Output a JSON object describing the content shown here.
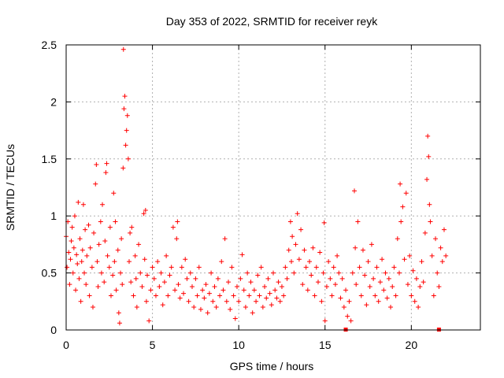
{
  "chart_data": {
    "type": "scatter",
    "title": "Day 353 of 2022, SRMTID for receiver reyk",
    "xlabel": "GPS time / hours",
    "ylabel": "SRMTID / TECUs",
    "xlim": [
      0,
      24
    ],
    "ylim": [
      0,
      2.5
    ],
    "x_ticks": [
      0,
      5,
      10,
      15,
      20
    ],
    "x_tick_labels": [
      "0",
      "5",
      "10",
      "15",
      "20"
    ],
    "y_ticks": [
      0,
      0.5,
      1,
      1.5,
      2,
      2.5
    ],
    "y_tick_labels": [
      "0",
      "0.5",
      "1",
      "1.5",
      "2",
      "2.5"
    ],
    "grid": true,
    "marker": "+",
    "color": "#ff0000",
    "series": [
      {
        "name": "SRMTID",
        "points": [
          [
            0.0,
            0.82
          ],
          [
            0.05,
            0.55
          ],
          [
            0.1,
            0.95
          ],
          [
            0.15,
            0.68
          ],
          [
            0.2,
            0.4
          ],
          [
            0.25,
            0.62
          ],
          [
            0.3,
            0.78
          ],
          [
            0.35,
            0.9
          ],
          [
            0.4,
            0.5
          ],
          [
            0.45,
            0.72
          ],
          [
            0.5,
            1.0
          ],
          [
            0.55,
            0.35
          ],
          [
            0.6,
            0.66
          ],
          [
            0.65,
            0.58
          ],
          [
            0.7,
            1.12
          ],
          [
            0.75,
            0.45
          ],
          [
            0.8,
            0.8
          ],
          [
            0.85,
            0.25
          ],
          [
            0.9,
            0.6
          ],
          [
            0.95,
            0.7
          ],
          [
            1.0,
            1.1
          ],
          [
            1.05,
            0.5
          ],
          [
            1.1,
            0.88
          ],
          [
            1.15,
            0.4
          ],
          [
            1.2,
            0.65
          ],
          [
            1.3,
            0.92
          ],
          [
            1.35,
            0.3
          ],
          [
            1.4,
            0.72
          ],
          [
            1.5,
            0.55
          ],
          [
            1.55,
            0.2
          ],
          [
            1.6,
            0.85
          ],
          [
            1.7,
            1.28
          ],
          [
            1.75,
            1.45
          ],
          [
            1.8,
            0.6
          ],
          [
            1.85,
            0.38
          ],
          [
            1.9,
            0.75
          ],
          [
            2.0,
            0.95
          ],
          [
            2.05,
            0.5
          ],
          [
            2.1,
            1.1
          ],
          [
            2.2,
            0.42
          ],
          [
            2.25,
            0.78
          ],
          [
            2.3,
            1.38
          ],
          [
            2.35,
            1.46
          ],
          [
            2.4,
            0.65
          ],
          [
            2.5,
            0.55
          ],
          [
            2.55,
            0.9
          ],
          [
            2.6,
            0.3
          ],
          [
            2.7,
            0.48
          ],
          [
            2.75,
            1.2
          ],
          [
            2.8,
            0.6
          ],
          [
            2.85,
            0.95
          ],
          [
            2.9,
            0.35
          ],
          [
            3.0,
            0.7
          ],
          [
            3.05,
            0.15
          ],
          [
            3.1,
            0.06
          ],
          [
            3.15,
            0.5
          ],
          [
            3.2,
            0.8
          ],
          [
            3.25,
            0.4
          ],
          [
            3.3,
            1.42
          ],
          [
            3.32,
            2.46
          ],
          [
            3.35,
            1.94
          ],
          [
            3.4,
            2.05
          ],
          [
            3.45,
            1.62
          ],
          [
            3.5,
            1.75
          ],
          [
            3.55,
            1.88
          ],
          [
            3.6,
            1.5
          ],
          [
            3.65,
            0.6
          ],
          [
            3.7,
            0.85
          ],
          [
            3.75,
            0.42
          ],
          [
            3.8,
            0.9
          ],
          [
            3.9,
            0.3
          ],
          [
            4.0,
            0.65
          ],
          [
            4.05,
            0.45
          ],
          [
            4.1,
            0.2
          ],
          [
            4.2,
            0.75
          ],
          [
            4.3,
            0.5
          ],
          [
            4.4,
            0.38
          ],
          [
            4.5,
            1.02
          ],
          [
            4.55,
            0.62
          ],
          [
            4.6,
            1.05
          ],
          [
            4.65,
            0.25
          ],
          [
            4.7,
            0.48
          ],
          [
            4.8,
            0.08
          ],
          [
            4.9,
            0.35
          ],
          [
            5.0,
            0.55
          ],
          [
            5.1,
            0.45
          ],
          [
            5.2,
            0.3
          ],
          [
            5.3,
            0.6
          ],
          [
            5.4,
            0.38
          ],
          [
            5.5,
            0.5
          ],
          [
            5.6,
            0.22
          ],
          [
            5.7,
            0.42
          ],
          [
            5.8,
            0.65
          ],
          [
            5.9,
            0.3
          ],
          [
            6.0,
            0.48
          ],
          [
            6.1,
            0.55
          ],
          [
            6.2,
            0.9
          ],
          [
            6.3,
            0.35
          ],
          [
            6.4,
            0.8
          ],
          [
            6.45,
            0.95
          ],
          [
            6.5,
            0.4
          ],
          [
            6.6,
            0.28
          ],
          [
            6.7,
            0.55
          ],
          [
            6.8,
            0.32
          ],
          [
            6.9,
            0.62
          ],
          [
            7.0,
            0.45
          ],
          [
            7.1,
            0.25
          ],
          [
            7.2,
            0.5
          ],
          [
            7.3,
            0.38
          ],
          [
            7.4,
            0.2
          ],
          [
            7.5,
            0.45
          ],
          [
            7.6,
            0.3
          ],
          [
            7.7,
            0.55
          ],
          [
            7.8,
            0.18
          ],
          [
            7.9,
            0.35
          ],
          [
            8.0,
            0.28
          ],
          [
            8.1,
            0.4
          ],
          [
            8.2,
            0.15
          ],
          [
            8.3,
            0.32
          ],
          [
            8.4,
            0.5
          ],
          [
            8.5,
            0.25
          ],
          [
            8.6,
            0.38
          ],
          [
            8.7,
            0.2
          ],
          [
            8.8,
            0.45
          ],
          [
            8.9,
            0.3
          ],
          [
            9.0,
            0.6
          ],
          [
            9.1,
            0.35
          ],
          [
            9.2,
            0.8
          ],
          [
            9.3,
            0.25
          ],
          [
            9.4,
            0.42
          ],
          [
            9.5,
            0.18
          ],
          [
            9.6,
            0.55
          ],
          [
            9.7,
            0.3
          ],
          [
            9.8,
            0.1
          ],
          [
            9.9,
            0.38
          ],
          [
            10.0,
            0.25
          ],
          [
            10.1,
            0.45
          ],
          [
            10.2,
            0.66
          ],
          [
            10.3,
            0.35
          ],
          [
            10.4,
            0.2
          ],
          [
            10.5,
            0.5
          ],
          [
            10.6,
            0.3
          ],
          [
            10.7,
            0.42
          ],
          [
            10.8,
            0.15
          ],
          [
            10.9,
            0.35
          ],
          [
            11.0,
            0.25
          ],
          [
            11.1,
            0.48
          ],
          [
            11.2,
            0.3
          ],
          [
            11.3,
            0.55
          ],
          [
            11.4,
            0.2
          ],
          [
            11.5,
            0.38
          ],
          [
            11.6,
            0.28
          ],
          [
            11.7,
            0.45
          ],
          [
            11.8,
            0.32
          ],
          [
            11.9,
            0.22
          ],
          [
            12.0,
            0.5
          ],
          [
            12.1,
            0.35
          ],
          [
            12.2,
            0.28
          ],
          [
            12.3,
            0.42
          ],
          [
            12.4,
            0.25
          ],
          [
            12.5,
            0.38
          ],
          [
            12.6,
            0.3
          ],
          [
            12.7,
            0.55
          ],
          [
            12.8,
            0.45
          ],
          [
            12.9,
            0.7
          ],
          [
            13.0,
            0.95
          ],
          [
            13.05,
            0.6
          ],
          [
            13.1,
            0.82
          ],
          [
            13.2,
            0.5
          ],
          [
            13.3,
            0.75
          ],
          [
            13.4,
            1.02
          ],
          [
            13.5,
            0.62
          ],
          [
            13.6,
            0.88
          ],
          [
            13.7,
            0.4
          ],
          [
            13.8,
            0.7
          ],
          [
            13.9,
            0.55
          ],
          [
            14.0,
            0.35
          ],
          [
            14.1,
            0.6
          ],
          [
            14.2,
            0.48
          ],
          [
            14.3,
            0.72
          ],
          [
            14.4,
            0.3
          ],
          [
            14.5,
            0.55
          ],
          [
            14.6,
            0.42
          ],
          [
            14.7,
            0.68
          ],
          [
            14.8,
            0.25
          ],
          [
            14.9,
            0.5
          ],
          [
            14.95,
            0.94
          ],
          [
            15.0,
            0.08
          ],
          [
            15.1,
            0.38
          ],
          [
            15.2,
            0.6
          ],
          [
            15.3,
            0.45
          ],
          [
            15.4,
            0.3
          ],
          [
            15.5,
            0.55
          ],
          [
            15.6,
            0.4
          ],
          [
            15.7,
            0.65
          ],
          [
            15.8,
            0.5
          ],
          [
            15.9,
            0.28
          ],
          [
            16.0,
            0.45
          ],
          [
            16.1,
            0.2
          ],
          [
            16.2,
            0.35
          ],
          [
            16.3,
            0.12
          ],
          [
            16.4,
            0.25
          ],
          [
            16.5,
            0.08
          ],
          [
            16.6,
            0.5
          ],
          [
            16.7,
            1.22
          ],
          [
            16.75,
            0.72
          ],
          [
            16.8,
            0.4
          ],
          [
            16.9,
            0.95
          ],
          [
            17.0,
            0.55
          ],
          [
            17.1,
            0.3
          ],
          [
            17.2,
            0.7
          ],
          [
            17.3,
            0.48
          ],
          [
            17.4,
            0.22
          ],
          [
            17.5,
            0.6
          ],
          [
            17.6,
            0.38
          ],
          [
            17.7,
            0.75
          ],
          [
            17.8,
            0.45
          ],
          [
            17.9,
            0.3
          ],
          [
            18.0,
            0.55
          ],
          [
            18.1,
            0.25
          ],
          [
            18.2,
            0.42
          ],
          [
            18.3,
            0.62
          ],
          [
            18.4,
            0.35
          ],
          [
            18.5,
            0.5
          ],
          [
            18.6,
            0.28
          ],
          [
            18.7,
            0.45
          ],
          [
            18.8,
            0.2
          ],
          [
            18.9,
            0.38
          ],
          [
            19.0,
            0.55
          ],
          [
            19.1,
            0.3
          ],
          [
            19.2,
            0.8
          ],
          [
            19.3,
            0.5
          ],
          [
            19.35,
            1.28
          ],
          [
            19.4,
            0.95
          ],
          [
            19.5,
            1.08
          ],
          [
            19.6,
            0.62
          ],
          [
            19.7,
            1.2
          ],
          [
            19.8,
            0.4
          ],
          [
            19.9,
            0.65
          ],
          [
            20.0,
            0.3
          ],
          [
            20.1,
            0.52
          ],
          [
            20.2,
            0.25
          ],
          [
            20.3,
            0.45
          ],
          [
            20.4,
            0.2
          ],
          [
            20.5,
            0.38
          ],
          [
            20.6,
            0.6
          ],
          [
            20.7,
            0.42
          ],
          [
            20.8,
            0.85
          ],
          [
            20.9,
            1.32
          ],
          [
            20.95,
            1.7
          ],
          [
            21.0,
            1.52
          ],
          [
            21.05,
            1.1
          ],
          [
            21.1,
            0.95
          ],
          [
            21.2,
            0.65
          ],
          [
            21.3,
            0.3
          ],
          [
            21.4,
            0.8
          ],
          [
            21.5,
            0.5
          ],
          [
            21.6,
            0.38
          ],
          [
            21.7,
            0.72
          ],
          [
            21.8,
            0.6
          ],
          [
            21.9,
            0.88
          ],
          [
            22.0,
            0.65
          ]
        ]
      }
    ],
    "square_markers": [
      {
        "x": 16.2,
        "y": 0
      },
      {
        "x": 21.6,
        "y": 0
      }
    ]
  }
}
